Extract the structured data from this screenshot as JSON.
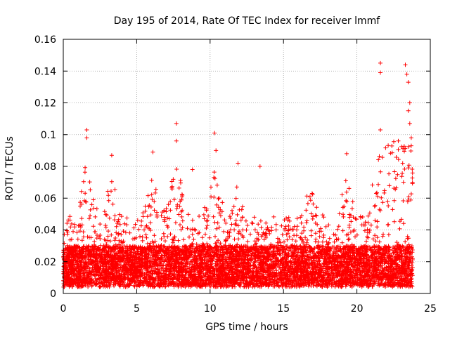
{
  "chart_data": {
    "type": "scatter",
    "title": "Day 195 of 2014, Rate Of TEC Index for receiver lmmf",
    "xlabel": "GPS time / hours",
    "ylabel": "ROTI / TECUs",
    "xlim": [
      0,
      25
    ],
    "ylim": [
      0,
      0.16
    ],
    "x_ticks": [
      0,
      5,
      10,
      15,
      20,
      25
    ],
    "x_tick_labels": [
      "0",
      "5",
      "10",
      "15",
      "20",
      "25"
    ],
    "y_ticks": [
      0,
      0.02,
      0.04,
      0.06,
      0.08,
      0.1,
      0.12,
      0.14,
      0.16
    ],
    "y_tick_labels": [
      "0",
      "0.02",
      "0.04",
      "0.06",
      "0.08",
      "0.1",
      "0.12",
      "0.14",
      "0.16"
    ],
    "grid": true,
    "marker": "+",
    "color": "#ff0000",
    "series": [
      {
        "name": "ROTI",
        "x_range": [
          0,
          23.8
        ],
        "baseline_range": [
          0.005,
          0.03
        ],
        "notable_points": [
          {
            "x": 1.6,
            "y": 0.103
          },
          {
            "x": 1.6,
            "y": 0.098
          },
          {
            "x": 3.3,
            "y": 0.087
          },
          {
            "x": 6.1,
            "y": 0.089
          },
          {
            "x": 7.7,
            "y": 0.107
          },
          {
            "x": 7.7,
            "y": 0.096
          },
          {
            "x": 8.8,
            "y": 0.078
          },
          {
            "x": 10.3,
            "y": 0.101
          },
          {
            "x": 10.4,
            "y": 0.09
          },
          {
            "x": 11.9,
            "y": 0.082
          },
          {
            "x": 13.4,
            "y": 0.08
          },
          {
            "x": 19.3,
            "y": 0.088
          },
          {
            "x": 21.6,
            "y": 0.145
          },
          {
            "x": 21.6,
            "y": 0.139
          },
          {
            "x": 21.6,
            "y": 0.103
          },
          {
            "x": 23.3,
            "y": 0.144
          },
          {
            "x": 23.4,
            "y": 0.138
          },
          {
            "x": 23.5,
            "y": 0.133
          },
          {
            "x": 23.6,
            "y": 0.12
          },
          {
            "x": 23.5,
            "y": 0.115
          },
          {
            "x": 23.6,
            "y": 0.107
          },
          {
            "x": 23.7,
            "y": 0.098
          },
          {
            "x": 23.7,
            "y": 0.093
          }
        ]
      }
    ]
  }
}
